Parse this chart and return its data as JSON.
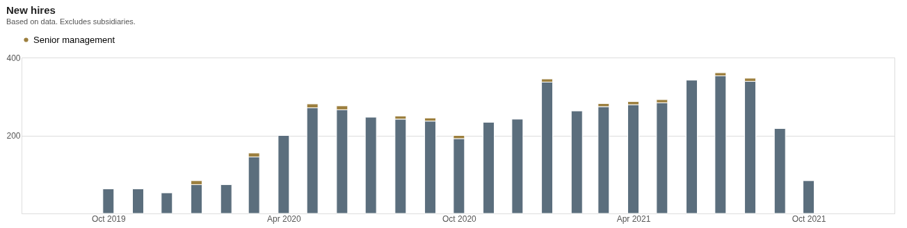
{
  "chart_data": {
    "type": "bar",
    "title": "New hires",
    "subtitle": "Based on data. Excludes subsidiaries.",
    "stacked": true,
    "x": [
      "2019-10",
      "2019-11",
      "2019-12",
      "2020-01",
      "2020-02",
      "2020-03",
      "2020-04",
      "2020-05",
      "2020-06",
      "2020-07",
      "2020-08",
      "2020-09",
      "2020-10",
      "2020-11",
      "2020-12",
      "2021-01",
      "2021-02",
      "2021-03",
      "2021-04",
      "2021-05",
      "2021-06",
      "2021-07",
      "2021-08",
      "2021-09",
      "2021-10"
    ],
    "series": [
      {
        "color": "#5b6e7d",
        "values": [
          63,
          63,
          53,
          74,
          74,
          145,
          200,
          271,
          266,
          247,
          242,
          237,
          192,
          234,
          242,
          337,
          263,
          274,
          279,
          284,
          342,
          353,
          339,
          218,
          84
        ]
      },
      {
        "name": "Senior management",
        "color": "#9c7f3e",
        "values": [
          null,
          null,
          null,
          10,
          null,
          10,
          null,
          10,
          10,
          null,
          8,
          8,
          8,
          null,
          null,
          8,
          null,
          8,
          8,
          8,
          null,
          8,
          8,
          null,
          null
        ]
      }
    ],
    "xlim": [
      "2019-07-06",
      "2021-12-26"
    ],
    "xticks": [
      {
        "value": "2019-10",
        "label": "Oct 2019"
      },
      {
        "value": "2020-04",
        "label": "Apr 2020"
      },
      {
        "value": "2020-10",
        "label": "Oct 2020"
      },
      {
        "value": "2021-04",
        "label": "Apr 2021"
      },
      {
        "value": "2021-10",
        "label": "Oct 2021"
      }
    ],
    "ylim": [
      0,
      400
    ],
    "yticks": [
      {
        "value": 0,
        "label": null
      },
      200,
      400
    ],
    "grid": "y",
    "legend": "top left"
  }
}
